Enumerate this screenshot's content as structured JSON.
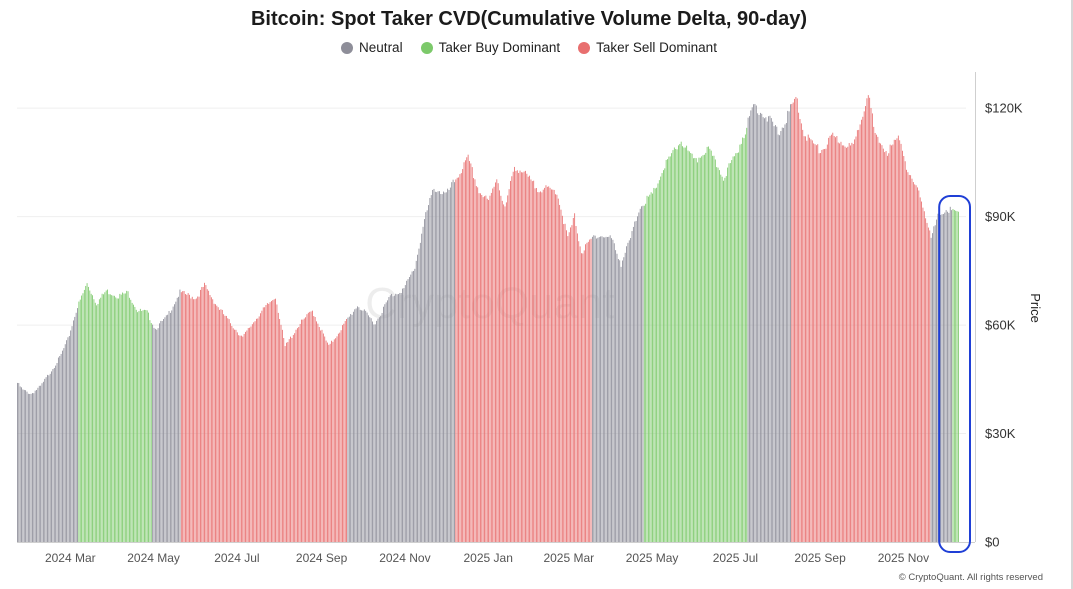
{
  "chart_data": {
    "type": "bar",
    "title": "Bitcoin: Spot Taker CVD(Cumulative Volume Delta, 90-day)",
    "legend": [
      {
        "key": "neutral",
        "label": "Neutral",
        "color": "#8e8e99"
      },
      {
        "key": "buy",
        "label": "Taker Buy Dominant",
        "color": "#7cc96a"
      },
      {
        "key": "sell",
        "label": "Taker Sell Dominant",
        "color": "#e86f6f"
      }
    ],
    "ylabel": "Price",
    "ylim": [
      0,
      130000
    ],
    "y_ticks": [
      {
        "value": 0,
        "label": "$0"
      },
      {
        "value": 30000,
        "label": "$30K"
      },
      {
        "value": 60000,
        "label": "$60K"
      },
      {
        "value": 90000,
        "label": "$90K"
      },
      {
        "value": 120000,
        "label": "$120K"
      }
    ],
    "x_start": "2024-01-22",
    "x_end": "2025-12-11",
    "x_ticks": [
      {
        "label": "2024 Mar",
        "date": "2024-03-01"
      },
      {
        "label": "2024 May",
        "date": "2024-05-01"
      },
      {
        "label": "2024 Jul",
        "date": "2024-07-01"
      },
      {
        "label": "2024 Sep",
        "date": "2024-09-01"
      },
      {
        "label": "2024 Nov",
        "date": "2024-11-01"
      },
      {
        "label": "2025 Jan",
        "date": "2025-01-01"
      },
      {
        "label": "2025 Mar",
        "date": "2025-03-01"
      },
      {
        "label": "2025 May",
        "date": "2025-05-01"
      },
      {
        "label": "2025 Jul",
        "date": "2025-07-01"
      },
      {
        "label": "2025 Sep",
        "date": "2025-09-01"
      },
      {
        "label": "2025 Nov",
        "date": "2025-11-01"
      }
    ],
    "price_anchors": [
      [
        "2024-01-22",
        44000
      ],
      [
        "2024-01-26",
        42000
      ],
      [
        "2024-02-01",
        41000
      ],
      [
        "2024-02-08",
        43000
      ],
      [
        "2024-02-15",
        47000
      ],
      [
        "2024-02-22",
        51000
      ],
      [
        "2024-02-28",
        56000
      ],
      [
        "2024-03-05",
        64000
      ],
      [
        "2024-03-13",
        71500
      ],
      [
        "2024-03-20",
        66000
      ],
      [
        "2024-03-27",
        69500
      ],
      [
        "2024-04-05",
        68000
      ],
      [
        "2024-04-12",
        69000
      ],
      [
        "2024-04-19",
        64000
      ],
      [
        "2024-04-26",
        63500
      ],
      [
        "2024-05-02",
        59000
      ],
      [
        "2024-05-10",
        62000
      ],
      [
        "2024-05-20",
        69000
      ],
      [
        "2024-06-01",
        67500
      ],
      [
        "2024-06-07",
        71000
      ],
      [
        "2024-06-15",
        66000
      ],
      [
        "2024-06-25",
        61000
      ],
      [
        "2024-07-05",
        56500
      ],
      [
        "2024-07-15",
        62000
      ],
      [
        "2024-07-29",
        68000
      ],
      [
        "2024-08-05",
        54000
      ],
      [
        "2024-08-15",
        60000
      ],
      [
        "2024-08-25",
        64000
      ],
      [
        "2024-09-06",
        54000
      ],
      [
        "2024-09-15",
        59000
      ],
      [
        "2024-09-27",
        65500
      ],
      [
        "2024-10-10",
        60500
      ],
      [
        "2024-10-21",
        68000
      ],
      [
        "2024-10-31",
        70000
      ],
      [
        "2024-11-08",
        76000
      ],
      [
        "2024-11-15",
        89000
      ],
      [
        "2024-11-22",
        98000
      ],
      [
        "2024-12-01",
        96000
      ],
      [
        "2024-12-17",
        106000
      ],
      [
        "2024-12-25",
        97000
      ],
      [
        "2025-01-01",
        94000
      ],
      [
        "2025-01-07",
        101000
      ],
      [
        "2025-01-13",
        92000
      ],
      [
        "2025-01-20",
        104000
      ],
      [
        "2025-01-27",
        102000
      ],
      [
        "2025-02-05",
        98000
      ],
      [
        "2025-02-20",
        97000
      ],
      [
        "2025-02-28",
        84000
      ],
      [
        "2025-03-05",
        90000
      ],
      [
        "2025-03-10",
        80000
      ],
      [
        "2025-03-20",
        85000
      ],
      [
        "2025-04-01",
        84000
      ],
      [
        "2025-04-08",
        77000
      ],
      [
        "2025-04-15",
        84000
      ],
      [
        "2025-04-22",
        93000
      ],
      [
        "2025-05-01",
        96000
      ],
      [
        "2025-05-10",
        104000
      ],
      [
        "2025-05-22",
        111000
      ],
      [
        "2025-06-01",
        105000
      ],
      [
        "2025-06-10",
        109000
      ],
      [
        "2025-06-22",
        101000
      ],
      [
        "2025-07-01",
        107000
      ],
      [
        "2025-07-10",
        116000
      ],
      [
        "2025-07-14",
        121000
      ],
      [
        "2025-07-25",
        117000
      ],
      [
        "2025-08-02",
        113000
      ],
      [
        "2025-08-14",
        123000
      ],
      [
        "2025-08-20",
        113000
      ],
      [
        "2025-09-01",
        108000
      ],
      [
        "2025-09-10",
        112000
      ],
      [
        "2025-09-25",
        109000
      ],
      [
        "2025-10-02",
        119000
      ],
      [
        "2025-10-06",
        125000
      ],
      [
        "2025-10-11",
        112000
      ],
      [
        "2025-10-20",
        108000
      ],
      [
        "2025-10-29",
        112000
      ],
      [
        "2025-11-05",
        101000
      ],
      [
        "2025-11-14",
        95000
      ],
      [
        "2025-11-21",
        84000
      ],
      [
        "2025-11-27",
        91000
      ],
      [
        "2025-12-03",
        92000
      ],
      [
        "2025-12-11",
        91000
      ]
    ],
    "segments": [
      {
        "from": "2024-01-22",
        "to": "2024-03-06",
        "state": "neutral"
      },
      {
        "from": "2024-03-07",
        "to": "2024-04-29",
        "state": "buy"
      },
      {
        "from": "2024-04-30",
        "to": "2024-05-20",
        "state": "neutral"
      },
      {
        "from": "2024-05-21",
        "to": "2024-09-19",
        "state": "sell"
      },
      {
        "from": "2024-09-20",
        "to": "2024-12-07",
        "state": "neutral"
      },
      {
        "from": "2024-12-08",
        "to": "2025-03-17",
        "state": "sell"
      },
      {
        "from": "2025-03-18",
        "to": "2025-04-24",
        "state": "neutral"
      },
      {
        "from": "2025-04-25",
        "to": "2025-07-09",
        "state": "buy"
      },
      {
        "from": "2025-07-10",
        "to": "2025-08-10",
        "state": "neutral"
      },
      {
        "from": "2025-08-11",
        "to": "2025-11-20",
        "state": "sell"
      },
      {
        "from": "2025-11-21",
        "to": "2025-12-06",
        "state": "neutral"
      },
      {
        "from": "2025-12-07",
        "to": "2025-12-11",
        "state": "buy"
      }
    ],
    "highlight": {
      "from": "2025-11-28",
      "to": "2025-12-11",
      "color": "#1f3fd6"
    },
    "watermark": "CryptoQuant",
    "credit": "© CryptoQuant. All rights reserved"
  }
}
